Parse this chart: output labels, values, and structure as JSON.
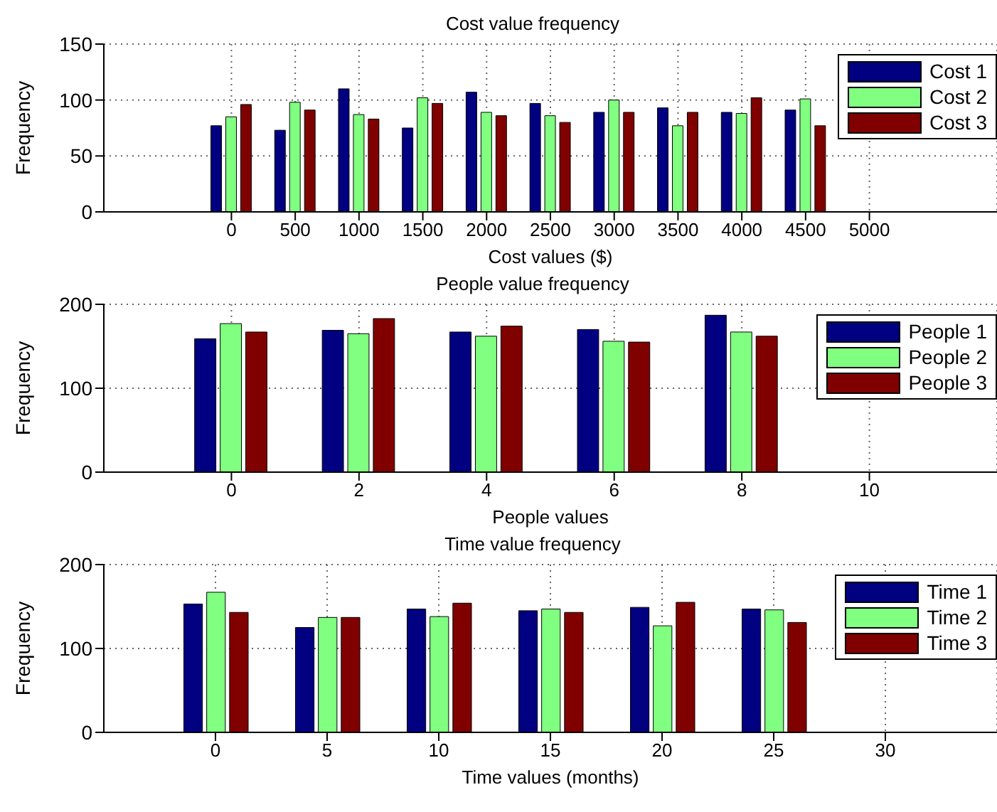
{
  "chart_data": [
    {
      "type": "bar",
      "title": "Cost value frequency",
      "xlabel": "Cost values ($)",
      "ylabel": "Frequency",
      "x": [
        0,
        500,
        1000,
        1500,
        2000,
        2500,
        3000,
        3500,
        4000,
        4500
      ],
      "xlim": [
        -1000,
        6000
      ],
      "xticks": [
        0,
        500,
        1000,
        1500,
        2000,
        2500,
        3000,
        3500,
        4000,
        4500,
        5000
      ],
      "ylim": [
        0,
        150
      ],
      "yticks": [
        0,
        50,
        100,
        150
      ],
      "grid": true,
      "legend": "top right",
      "series": [
        {
          "name": "Cost 1",
          "color": "#000080",
          "values": [
            77,
            73,
            110,
            75,
            107,
            97,
            89,
            93,
            89,
            91
          ]
        },
        {
          "name": "Cost 2",
          "color": "#80ff80",
          "values": [
            85,
            98,
            87,
            102,
            89,
            86,
            100,
            77,
            88,
            101
          ]
        },
        {
          "name": "Cost 3",
          "color": "#800000",
          "values": [
            96,
            91,
            83,
            97,
            86,
            80,
            89,
            89,
            102,
            77
          ]
        }
      ]
    },
    {
      "type": "bar",
      "title": "People value frequency",
      "xlabel": "People values",
      "ylabel": "Frequency",
      "x": [
        0,
        2,
        4,
        6,
        8
      ],
      "xlim": [
        -2,
        12
      ],
      "xticks": [
        0,
        2,
        4,
        6,
        8,
        10
      ],
      "ylim": [
        0,
        200
      ],
      "yticks": [
        0,
        100,
        200
      ],
      "grid": true,
      "legend": "top right",
      "series": [
        {
          "name": "People 1",
          "color": "#000080",
          "values": [
            159,
            169,
            167,
            170,
            187
          ]
        },
        {
          "name": "People 2",
          "color": "#80ff80",
          "values": [
            177,
            165,
            162,
            156,
            167
          ]
        },
        {
          "name": "People 3",
          "color": "#800000",
          "values": [
            167,
            183,
            174,
            155,
            162
          ]
        }
      ]
    },
    {
      "type": "bar",
      "title": "Time value frequency",
      "xlabel": "Time values (months)",
      "ylabel": "Frequency",
      "x": [
        0,
        5,
        10,
        15,
        20,
        25
      ],
      "xlim": [
        -5,
        35
      ],
      "xticks": [
        0,
        5,
        10,
        15,
        20,
        25,
        30
      ],
      "ylim": [
        0,
        200
      ],
      "yticks": [
        0,
        100,
        200
      ],
      "grid": true,
      "legend": "top right",
      "series": [
        {
          "name": "Time 1",
          "color": "#000080",
          "values": [
            153,
            125,
            147,
            145,
            149,
            147
          ]
        },
        {
          "name": "Time 2",
          "color": "#80ff80",
          "values": [
            167,
            137,
            138,
            147,
            127,
            146
          ]
        },
        {
          "name": "Time 3",
          "color": "#800000",
          "values": [
            143,
            137,
            154,
            143,
            155,
            131
          ]
        }
      ]
    }
  ]
}
